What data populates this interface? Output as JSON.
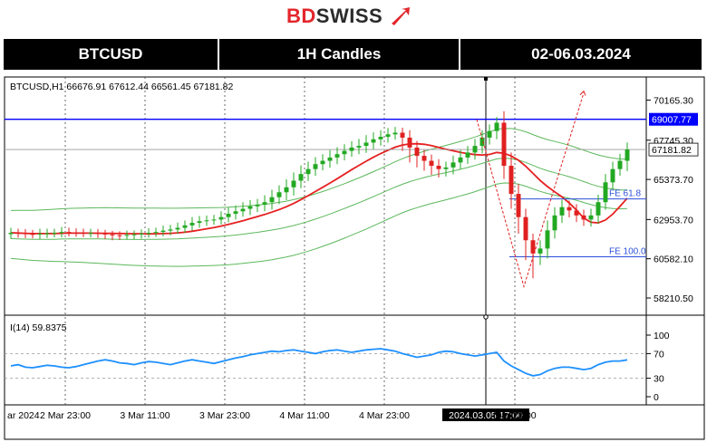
{
  "brand": {
    "part1": "BD",
    "part2": "SWISS"
  },
  "header": {
    "symbol": "BTCUSD",
    "timeframe": "1H Candles",
    "dates": "02-06.03.2024"
  },
  "chart_data": {
    "type": "candlestick",
    "info_line": "BTCUSD,H1  66676.91 67612.44 66561.45 67181.82",
    "price_ticks": [
      "70165.30",
      "67745.30",
      "65373.70",
      "62953.70",
      "60582.10",
      "58210.50"
    ],
    "price_tick_values": [
      70165.3,
      67745.3,
      65373.7,
      62953.7,
      60582.1,
      58210.5
    ],
    "price_range": [
      57500,
      71400
    ],
    "current_price": {
      "label": "67181.82",
      "value": 67181.82
    },
    "resistance": {
      "label": "69007.77",
      "value": 69007.77,
      "color": "#0000ff"
    },
    "fib_levels": [
      {
        "label": "FE 61.8",
        "value": 64200
      },
      {
        "label": "FE 100.0",
        "value": 60700
      }
    ],
    "time_labels": [
      "ar 2024",
      "2 Mar 23:00",
      "3 Mar 11:00",
      "3 Mar 23:00",
      "4 Mar 11:00",
      "4 Mar 23:00",
      "2024.03.05 17:00",
      "Mar 23:00"
    ],
    "close": [
      62150,
      62120,
      62080,
      62050,
      62100,
      62120,
      62150,
      62200,
      62180,
      62150,
      62120,
      62140,
      62100,
      62050,
      62000,
      61980,
      62020,
      62060,
      62100,
      62150,
      62200,
      62280,
      62350,
      62450,
      62600,
      62750,
      62850,
      62900,
      62950,
      63100,
      63300,
      63450,
      63600,
      63750,
      63850,
      64000,
      64300,
      64600,
      64900,
      65300,
      65700,
      66000,
      66300,
      66500,
      66700,
      66900,
      67100,
      67300,
      67400,
      67600,
      67800,
      67950,
      68100,
      68200,
      67900,
      67300,
      66800,
      66500,
      66200,
      66000,
      66100,
      66400,
      66700,
      67000,
      67400,
      67900,
      68300,
      68800,
      66200,
      64500,
      63100,
      61700,
      60900,
      61200,
      62300,
      63200,
      63700,
      63500,
      63200,
      62950,
      63200,
      64000,
      65200,
      66000,
      66500,
      67181.82
    ],
    "high_offset": [
      300,
      250,
      260,
      240,
      300,
      280,
      250,
      300,
      260,
      240,
      250,
      260,
      240,
      230,
      220,
      240,
      260,
      230,
      250,
      280,
      260,
      300,
      280,
      320,
      300,
      350,
      320,
      300,
      280,
      350,
      380,
      360,
      400,
      380,
      350,
      420,
      450,
      420,
      480,
      500,
      520,
      450,
      420,
      400,
      450,
      420,
      400,
      380,
      420,
      450,
      420,
      400,
      380,
      350,
      300,
      450,
      400,
      350,
      380,
      400,
      350,
      420,
      450,
      400,
      420,
      450,
      400,
      350,
      700,
      800,
      600,
      500,
      400,
      500,
      600,
      500,
      450,
      400,
      380,
      350,
      400,
      450,
      500,
      450,
      420,
      430
    ],
    "low_offset": [
      280,
      260,
      250,
      240,
      280,
      260,
      250,
      280,
      250,
      240,
      230,
      250,
      260,
      280,
      300,
      260,
      240,
      250,
      260,
      240,
      250,
      260,
      280,
      250,
      300,
      320,
      300,
      280,
      260,
      300,
      320,
      350,
      330,
      380,
      350,
      400,
      450,
      420,
      480,
      500,
      450,
      420,
      400,
      380,
      420,
      400,
      380,
      360,
      400,
      420,
      400,
      380,
      350,
      320,
      800,
      900,
      700,
      600,
      550,
      500,
      450,
      420,
      400,
      380,
      420,
      450,
      420,
      500,
      800,
      900,
      1000,
      1200,
      1500,
      700,
      600,
      500,
      450,
      420,
      400,
      380,
      420,
      500,
      450,
      420,
      400,
      620
    ],
    "ma_red": {
      "start": 62150,
      "end": 65600,
      "color": "#e62020"
    },
    "rsi": {
      "label": "I(14) 59.8375",
      "value": 59.8375,
      "levels": [
        100,
        70,
        30,
        0
      ],
      "level_labels": [
        "100",
        "70",
        "30",
        "0"
      ],
      "series": [
        50,
        52,
        48,
        47,
        49,
        51,
        50,
        48,
        47,
        49,
        52,
        55,
        58,
        60,
        58,
        55,
        54,
        52,
        55,
        57,
        56,
        54,
        52,
        55,
        58,
        60,
        58,
        56,
        54,
        57,
        60,
        63,
        65,
        68,
        70,
        72,
        74,
        73,
        75,
        76,
        74,
        72,
        70,
        73,
        75,
        76,
        74,
        72,
        74,
        76,
        77,
        78,
        76,
        74,
        70,
        67,
        64,
        66,
        68,
        72,
        74,
        73,
        70,
        68,
        66,
        68,
        70,
        72,
        58,
        50,
        44,
        38,
        34,
        36,
        42,
        46,
        48,
        48,
        46,
        44,
        46,
        52,
        56,
        58,
        58,
        59.8375
      ],
      "color": "#1e90ff"
    }
  }
}
